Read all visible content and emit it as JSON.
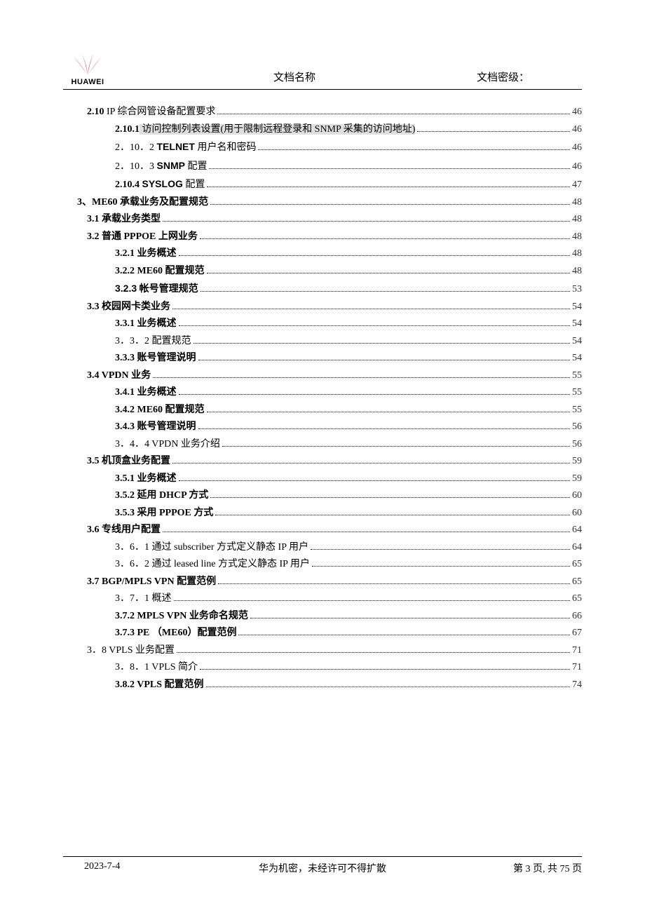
{
  "header": {
    "logo_text": "HUAWEI",
    "center": "文档名称",
    "right": "文档密级：",
    "logo_color": "#d41e26"
  },
  "toc": [
    {
      "indent": 1,
      "label": "2.10 IP 综合网管设备配置要求",
      "page": "46",
      "bold_prefix": "2.10"
    },
    {
      "indent": 2,
      "label": "2.10.1 访问控制列表设置(用于限制远程登录和 SNMP 采集的访问地址)",
      "page": "46",
      "bold_prefix": "2.10.1",
      "highlight_after_prefix": true
    },
    {
      "indent": 2,
      "label": "2．10．2 TELNET 用户名和密码",
      "page": "46",
      "arial_bold_part": "TELNET"
    },
    {
      "indent": 2,
      "label": "2．10．3 SNMP 配置",
      "page": "46",
      "arial_bold_part": "SNMP"
    },
    {
      "indent": 2,
      "label": "2.10.4 SYSLOG 配置",
      "page": "47",
      "bold_prefix": "2.10.4",
      "arial_bold_part": "SYSLOG"
    },
    {
      "indent": 0,
      "label": "3、ME60 承载业务及配置规范",
      "page": "48",
      "bold": true
    },
    {
      "indent": 1,
      "label": "3.1 承载业务类型",
      "page": "48",
      "bold": true
    },
    {
      "indent": 1,
      "label": "3.2 普通 PPPOE 上网业务",
      "page": "48",
      "bold": true
    },
    {
      "indent": 2,
      "label": "3.2.1 业务概述",
      "page": "48",
      "bold": true
    },
    {
      "indent": 2,
      "label": "3.2.2 ME60 配置规范",
      "page": "48",
      "bold": true
    },
    {
      "indent": 2,
      "label": "3.2.3 帐号管理规范",
      "page": "53",
      "bold": true,
      "arial_prefix": "3.2.3"
    },
    {
      "indent": 1,
      "label": "3.3 校园网卡类业务",
      "page": "54",
      "bold": true
    },
    {
      "indent": 2,
      "label": "3.3.1 业务概述",
      "page": "54",
      "bold": true
    },
    {
      "indent": 2,
      "label": "3．3．2 配置规范",
      "page": "54"
    },
    {
      "indent": 2,
      "label": "3.3.3 账号管理说明",
      "page": "54",
      "bold": true
    },
    {
      "indent": 1,
      "label": "3.4 VPDN 业务",
      "page": "55",
      "bold": true
    },
    {
      "indent": 2,
      "label": "3.4.1 业务概述",
      "page": "55",
      "bold": true
    },
    {
      "indent": 2,
      "label": "3.4.2 ME60 配置规范",
      "page": "55",
      "bold": true
    },
    {
      "indent": 2,
      "label": "3.4.3 账号管理说明",
      "page": "56",
      "bold": true
    },
    {
      "indent": 2,
      "label": "3．4．4 VPDN 业务介绍",
      "page": "56"
    },
    {
      "indent": 1,
      "label": "3.5 机顶盒业务配置",
      "page": "59",
      "bold": true
    },
    {
      "indent": 2,
      "label": "3.5.1 业务概述",
      "page": "59",
      "bold": true
    },
    {
      "indent": 2,
      "label": "3.5.2 延用 DHCP 方式",
      "page": "60",
      "bold": true
    },
    {
      "indent": 2,
      "label": "3.5.3 采用 PPPOE 方式",
      "page": "60",
      "bold": true
    },
    {
      "indent": 1,
      "label": "3.6 专线用户配置",
      "page": "64",
      "bold": true
    },
    {
      "indent": 2,
      "label": "3．6．1 通过 subscriber 方式定义静态 IP 用户",
      "page": "64"
    },
    {
      "indent": 2,
      "label": "3．6．2 通过 leased line 方式定义静态 IP 用户",
      "page": "65"
    },
    {
      "indent": 1,
      "label": "3.7 BGP/MPLS VPN 配置范例",
      "page": "65",
      "bold": true
    },
    {
      "indent": 2,
      "label": "3．7．1 概述",
      "page": "65"
    },
    {
      "indent": 2,
      "label": "3.7.2 MPLS VPN 业务命名规范",
      "page": "66",
      "bold": true
    },
    {
      "indent": 2,
      "label": "3.7.3 PE （ME60）配置范例",
      "page": "67",
      "bold": true
    },
    {
      "indent": 1,
      "label": "3．8 VPLS 业务配置",
      "page": "71"
    },
    {
      "indent": 2,
      "label": "3．8．1 VPLS 简介",
      "page": "71"
    },
    {
      "indent": 2,
      "label": "3.8.2 VPLS 配置范例",
      "page": "74",
      "bold": true
    }
  ],
  "footer": {
    "left": "2023-7-4",
    "center": "华为机密，未经许可不得扩散",
    "right_prefix": "第 ",
    "right_page": "3",
    "right_mid": " 页, 共 ",
    "right_total": "75",
    "right_suffix": " 页"
  }
}
